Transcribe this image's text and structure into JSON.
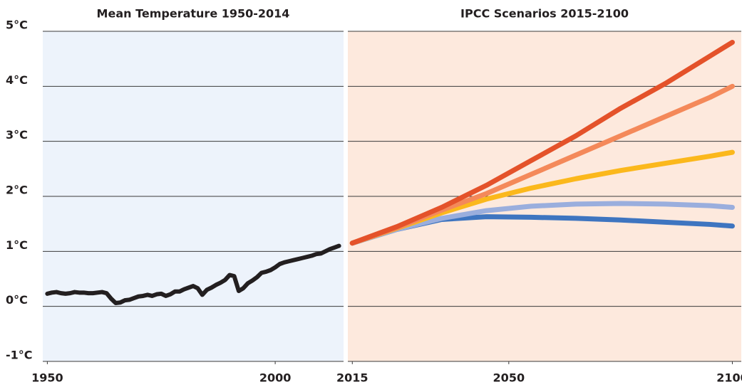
{
  "chart_data": [
    {
      "type": "line",
      "title": "Mean Temperature 1950-2014",
      "xlim": [
        1949,
        2015
      ],
      "xticks": [
        1950,
        2000
      ],
      "ylim": [
        -1,
        5
      ],
      "yticks": [
        {
          "value": -1,
          "label": "-1°C"
        },
        {
          "value": 0,
          "label": "0°C"
        },
        {
          "value": 1,
          "label": "1°C"
        },
        {
          "value": 2,
          "label": "2°C"
        },
        {
          "value": 3,
          "label": "3°C"
        },
        {
          "value": 4,
          "label": "4°C"
        },
        {
          "value": 5,
          "label": "5°C"
        }
      ],
      "background": "#edf3fb",
      "x": [
        1950,
        1951,
        1952,
        1953,
        1954,
        1955,
        1956,
        1957,
        1958,
        1959,
        1960,
        1961,
        1962,
        1963,
        1964,
        1965,
        1966,
        1967,
        1968,
        1969,
        1970,
        1971,
        1972,
        1973,
        1974,
        1975,
        1976,
        1977,
        1978,
        1979,
        1980,
        1981,
        1982,
        1983,
        1984,
        1985,
        1986,
        1987,
        1988,
        1989,
        1990,
        1991,
        1992,
        1993,
        1994,
        1995,
        1996,
        1997,
        1998,
        1999,
        2000,
        2001,
        2002,
        2003,
        2004,
        2005,
        2006,
        2007,
        2008,
        2009,
        2010,
        2011,
        2012,
        2013,
        2014
      ],
      "series": [
        {
          "color": "#231f20",
          "values": [
            0.23,
            0.25,
            0.26,
            0.24,
            0.23,
            0.24,
            0.26,
            0.25,
            0.25,
            0.24,
            0.24,
            0.25,
            0.26,
            0.24,
            0.14,
            0.06,
            0.07,
            0.11,
            0.12,
            0.15,
            0.18,
            0.19,
            0.21,
            0.19,
            0.22,
            0.23,
            0.19,
            0.22,
            0.27,
            0.27,
            0.31,
            0.34,
            0.37,
            0.33,
            0.21,
            0.3,
            0.34,
            0.39,
            0.43,
            0.48,
            0.57,
            0.55,
            0.28,
            0.33,
            0.42,
            0.47,
            0.53,
            0.61,
            0.63,
            0.66,
            0.71,
            0.77,
            0.8,
            0.82,
            0.84,
            0.86,
            0.88,
            0.9,
            0.92,
            0.95,
            0.96,
            1.0,
            1.04,
            1.07,
            1.1
          ]
        }
      ]
    },
    {
      "type": "line",
      "title": "IPCC Scenarios 2015-2100",
      "xlim": [
        2014,
        2102
      ],
      "xticks": [
        2015,
        2050,
        2100
      ],
      "ylim": [
        -1,
        5
      ],
      "yticks": [
        {
          "value": -1,
          "label": "-1°C"
        },
        {
          "value": 0,
          "label": "0°C"
        },
        {
          "value": 1,
          "label": "1°C"
        },
        {
          "value": 2,
          "label": "2°C"
        },
        {
          "value": 3,
          "label": "3°C"
        },
        {
          "value": 4,
          "label": "4°C"
        },
        {
          "value": 5,
          "label": "5°C"
        }
      ],
      "background": "#fde9dd",
      "x": [
        2015,
        2025,
        2035,
        2045,
        2055,
        2065,
        2075,
        2085,
        2095,
        2100
      ],
      "series": [
        {
          "color": "#3e75c0",
          "values": [
            1.15,
            1.4,
            1.58,
            1.63,
            1.62,
            1.6,
            1.57,
            1.53,
            1.49,
            1.46
          ]
        },
        {
          "color": "#9aaedd",
          "values": [
            1.15,
            1.4,
            1.6,
            1.74,
            1.82,
            1.86,
            1.87,
            1.86,
            1.83,
            1.8
          ]
        },
        {
          "color": "#fbb81c",
          "values": [
            1.15,
            1.42,
            1.7,
            1.95,
            2.15,
            2.32,
            2.47,
            2.6,
            2.73,
            2.8
          ]
        },
        {
          "color": "#f4895a",
          "values": [
            1.15,
            1.43,
            1.75,
            2.05,
            2.4,
            2.75,
            3.1,
            3.45,
            3.8,
            4.0
          ]
        },
        {
          "color": "#e4522a",
          "values": [
            1.15,
            1.45,
            1.8,
            2.2,
            2.65,
            3.1,
            3.6,
            4.05,
            4.55,
            4.8
          ]
        }
      ]
    }
  ]
}
